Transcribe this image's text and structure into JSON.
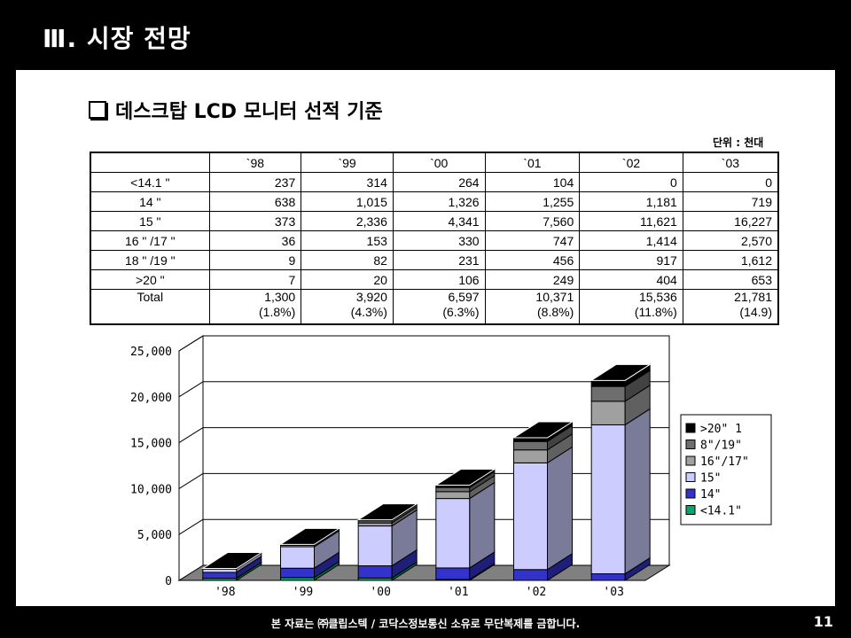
{
  "slide": {
    "title": "Ⅲ. 시장 전망",
    "heading": "데스크탑 LCD 모니터 선적 기준",
    "unit_note": "단위 : 천대",
    "footer": "본 자료는 ㈜클립스텍 / 코닥스정보통신 소유로 무단복제를 금합니다.",
    "page_number": "11"
  },
  "table": {
    "columns": [
      "",
      "`98",
      "`99",
      "`00",
      "`01",
      "`02",
      "`03"
    ],
    "rows": [
      {
        "label": "<14.1 \"",
        "values": [
          "237",
          "314",
          "264",
          "104",
          "0",
          "0"
        ]
      },
      {
        "label": "14 \"",
        "values": [
          "638",
          "1,015",
          "1,326",
          "1,255",
          "1,181",
          "719"
        ]
      },
      {
        "label": "15 \"",
        "values": [
          "373",
          "2,336",
          "4,341",
          "7,560",
          "11,621",
          "16,227"
        ]
      },
      {
        "label": "16 \" /17 \"",
        "values": [
          "36",
          "153",
          "330",
          "747",
          "1,414",
          "2,570"
        ]
      },
      {
        "label": "18 \" /19 \"",
        "values": [
          "9",
          "82",
          "231",
          "456",
          "917",
          "1,612"
        ]
      },
      {
        "label": ">20 \"",
        "values": [
          "7",
          "20",
          "106",
          "249",
          "404",
          "653"
        ]
      }
    ],
    "total": {
      "label": "Total",
      "values": [
        "1,300",
        "3,920",
        "6,597",
        "10,371",
        "15,536",
        "21,781"
      ],
      "shares": [
        "(1.8%)",
        "(4.3%)",
        "(6.3%)",
        "(8.8%)",
        "(11.8%)",
        "(14.9)"
      ]
    }
  },
  "chart_data": {
    "type": "bar",
    "stacked": true,
    "three_d": true,
    "categories": [
      "'98",
      "'99",
      "'00",
      "'01",
      "'02",
      "'03"
    ],
    "series": [
      {
        "name": "<14.1\"",
        "values": [
          237,
          314,
          264,
          104,
          0,
          0
        ],
        "color": "#00a86b"
      },
      {
        "name": "14\"",
        "values": [
          638,
          1015,
          1326,
          1255,
          1181,
          719
        ],
        "color": "#3333cc"
      },
      {
        "name": "15\"",
        "values": [
          373,
          2336,
          4341,
          7560,
          11621,
          16227
        ],
        "color": "#ccccff"
      },
      {
        "name": "16\"/17\"",
        "values": [
          36,
          153,
          330,
          747,
          1414,
          2570
        ],
        "color": "#a0a0a0"
      },
      {
        "name": "8\"/19\"",
        "values": [
          9,
          82,
          231,
          456,
          917,
          1612
        ],
        "color": "#6e6e6e"
      },
      {
        "name": ">20\" 1",
        "values": [
          7,
          20,
          106,
          249,
          404,
          653
        ],
        "color": "#000000"
      }
    ],
    "legend_order": [
      5,
      4,
      3,
      2,
      1,
      0
    ],
    "y_ticks": [
      "0",
      "5,000",
      "10,000",
      "15,000",
      "20,000",
      "25,000"
    ],
    "y_tick_values": [
      0,
      5000,
      10000,
      15000,
      20000,
      25000
    ],
    "ylim": [
      0,
      25000
    ],
    "grid": true,
    "legend_position": "right"
  }
}
